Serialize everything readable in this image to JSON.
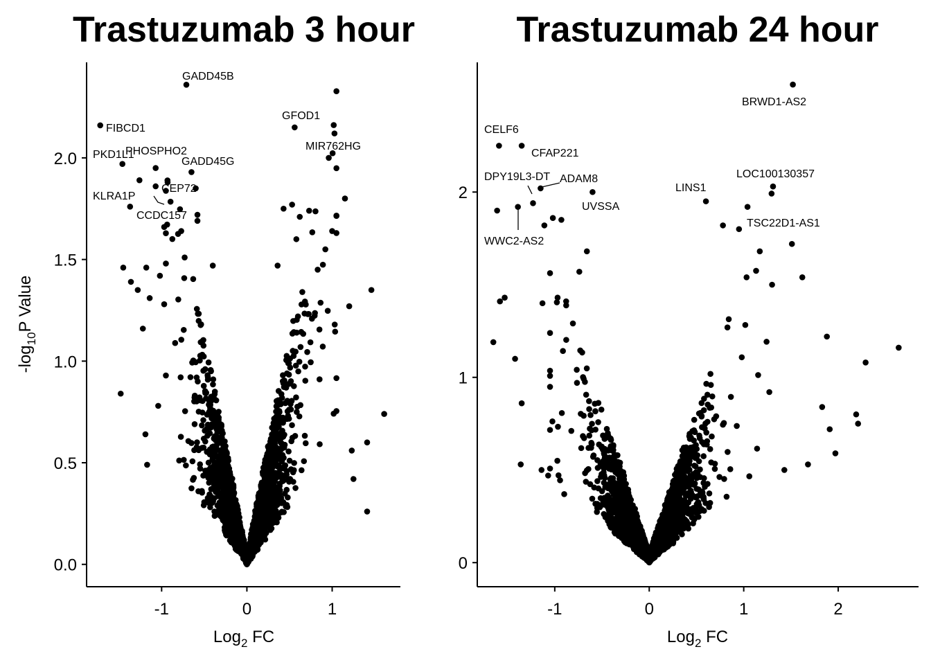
{
  "chart_data": [
    {
      "type": "scatter",
      "title": "Trastuzumab 3 hour",
      "xlabel": "Log",
      "xlabel_sub": "2",
      "xlabel_suffix": " FC",
      "ylabel_prefix": "-log",
      "ylabel_sub": "10",
      "ylabel_suffix": "P Value",
      "xlim": [
        -1.88,
        1.8
      ],
      "ylim": [
        -0.11,
        2.47
      ],
      "xticks": [
        -1,
        0,
        1
      ],
      "xtick_labels": [
        "-1",
        "0",
        "1"
      ],
      "yticks": [
        0,
        0.5,
        1,
        1.5,
        2
      ],
      "ytick_labels": [
        "0.0",
        "0.5",
        "1.0",
        "1.5",
        "2.0"
      ],
      "cloud": {
        "n": 2600,
        "slope": 2.2,
        "xmin": -0.95,
        "xmax": 1.05
      },
      "highlighted": [
        {
          "x": -0.71,
          "y": 2.36,
          "label": "GADD45B"
        },
        {
          "x": -1.72,
          "y": 2.16,
          "label": "FIBCD1"
        },
        {
          "x": 0.56,
          "y": 2.15,
          "label": "GFOD1"
        },
        {
          "x": 0.96,
          "y": 2.0,
          "label": "MIR762HG"
        },
        {
          "x": -1.46,
          "y": 1.97,
          "label": "PKD1L1"
        },
        {
          "x": -1.07,
          "y": 1.95,
          "label": "PHOSPHO2"
        },
        {
          "x": -0.65,
          "y": 1.93,
          "label": "GADD45G"
        },
        {
          "x": -1.07,
          "y": 1.86,
          "label": "CEP72"
        },
        {
          "x": -1.26,
          "y": 1.89,
          "label": "KLRA1P"
        },
        {
          "x": -1.37,
          "y": 1.76,
          "label": "CCDC157"
        }
      ],
      "extra_points": [
        {
          "x": -0.58,
          "y": 1.72
        },
        {
          "x": -0.97,
          "y": 1.66
        },
        {
          "x": -0.77,
          "y": 1.64
        },
        {
          "x": -0.93,
          "y": 1.88
        },
        {
          "x": -0.6,
          "y": 1.85
        },
        {
          "x": -0.58,
          "y": 1.69
        },
        {
          "x": -1.45,
          "y": 1.46
        },
        {
          "x": -1.18,
          "y": 1.46
        },
        {
          "x": -0.95,
          "y": 1.48
        },
        {
          "x": -0.73,
          "y": 1.51
        },
        {
          "x": -1.36,
          "y": 1.39
        },
        {
          "x": -1.02,
          "y": 1.42
        },
        {
          "x": -1.28,
          "y": 1.35
        },
        {
          "x": -1.14,
          "y": 1.31
        },
        {
          "x": -0.4,
          "y": 1.47
        },
        {
          "x": -0.97,
          "y": 1.28
        },
        {
          "x": -1.22,
          "y": 1.16
        },
        {
          "x": -1.48,
          "y": 0.84
        },
        {
          "x": -1.04,
          "y": 0.78
        },
        {
          "x": -1.19,
          "y": 0.64
        },
        {
          "x": -1.17,
          "y": 0.49
        },
        {
          "x": 0.43,
          "y": 1.75
        },
        {
          "x": 0.53,
          "y": 1.77
        },
        {
          "x": 0.73,
          "y": 1.74
        },
        {
          "x": 0.62,
          "y": 1.71
        },
        {
          "x": 0.58,
          "y": 1.6
        },
        {
          "x": 1.0,
          "y": 1.64
        },
        {
          "x": 0.92,
          "y": 1.55
        },
        {
          "x": 1.15,
          "y": 1.8
        },
        {
          "x": 1.05,
          "y": 1.63
        },
        {
          "x": 0.83,
          "y": 1.45
        },
        {
          "x": 0.65,
          "y": 1.34
        },
        {
          "x": 0.36,
          "y": 1.47
        },
        {
          "x": 1.46,
          "y": 1.35
        },
        {
          "x": 1.2,
          "y": 1.27
        },
        {
          "x": 1.03,
          "y": 1.18
        },
        {
          "x": 1.61,
          "y": 0.74
        },
        {
          "x": 1.41,
          "y": 0.6
        },
        {
          "x": 1.23,
          "y": 0.56
        },
        {
          "x": 1.41,
          "y": 0.26
        },
        {
          "x": 1.25,
          "y": 0.42
        }
      ]
    },
    {
      "type": "scatter",
      "title": "Trastuzumab 24 hour",
      "xlabel": "Log",
      "xlabel_sub": "2",
      "xlabel_suffix": " FC",
      "xlim": [
        -1.82,
        2.85
      ],
      "ylim": [
        -0.13,
        2.7
      ],
      "xticks": [
        -1,
        0,
        1,
        2
      ],
      "xtick_labels": [
        "-1",
        "0",
        "1",
        "2"
      ],
      "yticks": [
        0,
        1,
        2
      ],
      "ytick_labels": [
        "0",
        "1",
        "2"
      ],
      "cloud": {
        "n": 3400,
        "slope": 1.6,
        "xmin": -1.05,
        "xmax": 1.35
      },
      "highlighted": [
        {
          "x": 1.52,
          "y": 2.58,
          "label": "BRWD1-AS2"
        },
        {
          "x": -1.59,
          "y": 2.25,
          "label": "CELF6"
        },
        {
          "x": -1.35,
          "y": 2.25,
          "label": "CFAP221"
        },
        {
          "x": -1.23,
          "y": 1.94,
          "label": "DPY19L3-DT"
        },
        {
          "x": -1.15,
          "y": 2.02,
          "label": "ADAM8"
        },
        {
          "x": -0.6,
          "y": 2.0,
          "label": "UVSSA"
        },
        {
          "x": 0.6,
          "y": 1.95,
          "label": "LINS1"
        },
        {
          "x": 1.31,
          "y": 2.03,
          "label": "LOC100130357"
        },
        {
          "x": 1.51,
          "y": 1.72,
          "label": "TSC22D1-AS1"
        },
        {
          "x": -1.39,
          "y": 1.92,
          "label": "WWC2-AS2"
        }
      ],
      "extra_points": [
        {
          "x": -1.61,
          "y": 1.9
        },
        {
          "x": -1.11,
          "y": 1.82
        },
        {
          "x": -1.02,
          "y": 1.86
        },
        {
          "x": -0.93,
          "y": 1.85
        },
        {
          "x": 1.04,
          "y": 1.92
        },
        {
          "x": 0.78,
          "y": 1.82
        },
        {
          "x": 0.95,
          "y": 1.8
        },
        {
          "x": -1.58,
          "y": 1.41
        },
        {
          "x": -1.53,
          "y": 1.43
        },
        {
          "x": -1.13,
          "y": 1.4
        },
        {
          "x": -0.97,
          "y": 1.43
        },
        {
          "x": -0.74,
          "y": 1.57
        },
        {
          "x": -0.66,
          "y": 1.68
        },
        {
          "x": 1.17,
          "y": 1.68
        },
        {
          "x": 1.03,
          "y": 1.54
        },
        {
          "x": 1.3,
          "y": 1.5
        },
        {
          "x": 1.62,
          "y": 1.54
        },
        {
          "x": 1.88,
          "y": 1.22
        },
        {
          "x": 2.64,
          "y": 1.16
        },
        {
          "x": 2.29,
          "y": 1.08
        },
        {
          "x": 1.83,
          "y": 0.84
        },
        {
          "x": 2.19,
          "y": 0.8
        },
        {
          "x": 2.21,
          "y": 0.75
        },
        {
          "x": 1.91,
          "y": 0.72
        },
        {
          "x": 1.97,
          "y": 0.59
        },
        {
          "x": 1.68,
          "y": 0.53
        },
        {
          "x": 1.43,
          "y": 0.5
        },
        {
          "x": -1.65,
          "y": 1.19
        },
        {
          "x": -1.42,
          "y": 1.1
        },
        {
          "x": -1.35,
          "y": 0.86
        },
        {
          "x": -1.36,
          "y": 0.53
        },
        {
          "x": -1.07,
          "y": 0.47
        },
        {
          "x": -1.14,
          "y": 0.5
        }
      ]
    }
  ]
}
